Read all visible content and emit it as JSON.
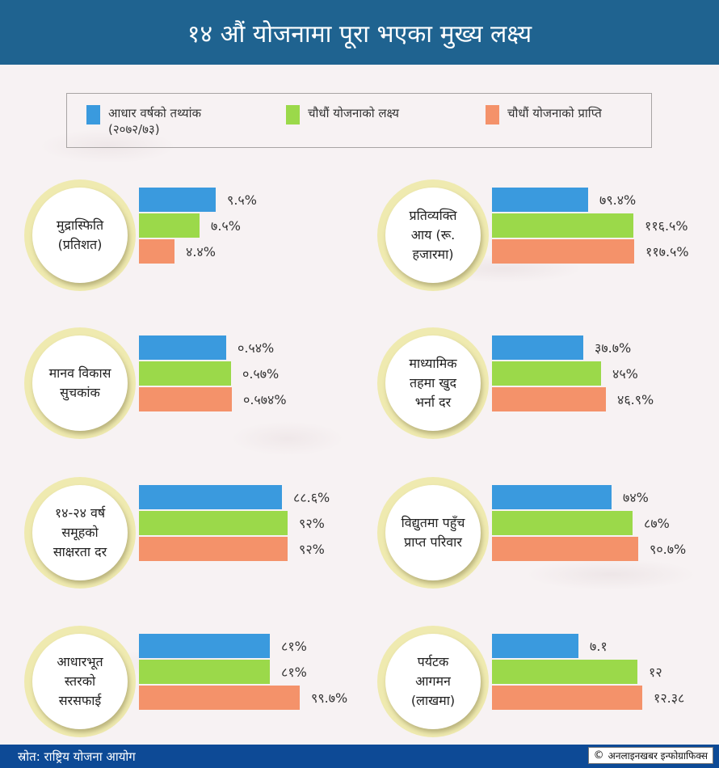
{
  "header": {
    "title": "१४ औं योजनामा पूरा भएका मुख्य लक्ष्य"
  },
  "legend": [
    {
      "label_line1": "आधार वर्षको तथ्यांक",
      "label_line2": "(२०७२/७३)",
      "color": "#3a9ade"
    },
    {
      "label_line1": "चौधौं योजनाको लक्ष्य",
      "label_line2": "",
      "color": "#9bd94a"
    },
    {
      "label_line1": "चौधौं योजनाको प्राप्ति",
      "label_line2": "",
      "color": "#f4926a"
    }
  ],
  "colors": {
    "base": "#3a9ade",
    "target": "#9bd94a",
    "achievement": "#f4926a",
    "header": "#1f6390",
    "footer": "#0d4a96",
    "ring": "#efeab0"
  },
  "chart_data": [
    {
      "type": "bar",
      "orientation": "horizontal",
      "title_lines": [
        "मुद्रास्फिति",
        "(प्रतिशत)"
      ],
      "categories": [
        "आधार वर्षको तथ्यांक (२०७२/७३)",
        "चौधौं योजनाको लक्ष्य",
        "चौधौं योजनाको प्राप्ति"
      ],
      "values": [
        9.5,
        7.5,
        4.4
      ],
      "labels": [
        "९.५%",
        "७.५%",
        "४.४%"
      ]
    },
    {
      "type": "bar",
      "orientation": "horizontal",
      "title_lines": [
        "प्रतिव्यक्ति",
        "आय (रू.",
        "हजारमा)"
      ],
      "categories": [
        "आधार वर्षको तथ्यांक (२०७२/७३)",
        "चौधौं योजनाको लक्ष्य",
        "चौधौं योजनाको प्राप्ति"
      ],
      "values": [
        79.4,
        116.5,
        117.5
      ],
      "labels": [
        "७९.४%",
        "११६.५%",
        "११७.५%"
      ]
    },
    {
      "type": "bar",
      "orientation": "horizontal",
      "title_lines": [
        "मानव विकास",
        "सुचकांक"
      ],
      "categories": [
        "आधार वर्षको तथ्यांक (२०७२/७३)",
        "चौधौं योजनाको लक्ष्य",
        "चौधौं योजनाको प्राप्ति"
      ],
      "values": [
        0.54,
        0.57,
        0.574
      ],
      "labels": [
        "०.५४%",
        "०.५७%",
        "०.५७४%"
      ]
    },
    {
      "type": "bar",
      "orientation": "horizontal",
      "title_lines": [
        "माध्यामिक",
        "तहमा खुद",
        "भर्ना दर"
      ],
      "categories": [
        "आधार वर्षको तथ्यांक (२०७२/७३)",
        "चौधौं योजनाको लक्ष्य",
        "चौधौं योजनाको प्राप्ति"
      ],
      "values": [
        37.7,
        45,
        46.9
      ],
      "labels": [
        "३७.७%",
        "४५%",
        "४६.९%"
      ]
    },
    {
      "type": "bar",
      "orientation": "horizontal",
      "title_lines": [
        "१४-२४ वर्ष",
        "समूहको",
        "साक्षरता दर"
      ],
      "categories": [
        "आधार वर्षको तथ्यांक (२०७२/७३)",
        "चौधौं योजनाको लक्ष्य",
        "चौधौं योजनाको प्राप्ति"
      ],
      "values": [
        88.6,
        92,
        92
      ],
      "labels": [
        "८८.६%",
        "९२%",
        "९२%"
      ]
    },
    {
      "type": "bar",
      "orientation": "horizontal",
      "title_lines": [
        "विद्युतमा पहुँच",
        "प्राप्त परिवार"
      ],
      "categories": [
        "आधार वर्षको तथ्यांक (२०७२/७३)",
        "चौधौं योजनाको लक्ष्य",
        "चौधौं योजनाको प्राप्ति"
      ],
      "values": [
        74,
        87,
        90.7
      ],
      "labels": [
        "७४%",
        "८७%",
        "९०.७%"
      ]
    },
    {
      "type": "bar",
      "orientation": "horizontal",
      "title_lines": [
        "आधारभूत",
        "स्तरको",
        "सरसफाई"
      ],
      "categories": [
        "आधार वर्षको तथ्यांक (२०७२/७३)",
        "चौधौं योजनाको लक्ष्य",
        "चौधौं योजनाको प्राप्ति"
      ],
      "values": [
        81,
        81,
        99.7
      ],
      "labels": [
        "८१%",
        "८१%",
        "९९.७%"
      ]
    },
    {
      "type": "bar",
      "orientation": "horizontal",
      "title_lines": [
        "पर्यटक",
        "आगमन",
        "(लाखमा)"
      ],
      "categories": [
        "आधार वर्षको तथ्यांक (२०७२/७३)",
        "चौधौं योजनाको लक्ष्य",
        "चौधौं योजनाको प्राप्ति"
      ],
      "values": [
        7.1,
        12,
        12.38
      ],
      "labels": [
        "७.१",
        "१२",
        "१२.३८"
      ]
    }
  ],
  "footer": {
    "source": "स्रोत: राष्ट्रिय योजना आयोग",
    "credit": "अनलाइनखबर इन्फोग्राफिक्स",
    "copyright_icon": "copyright-icon"
  }
}
